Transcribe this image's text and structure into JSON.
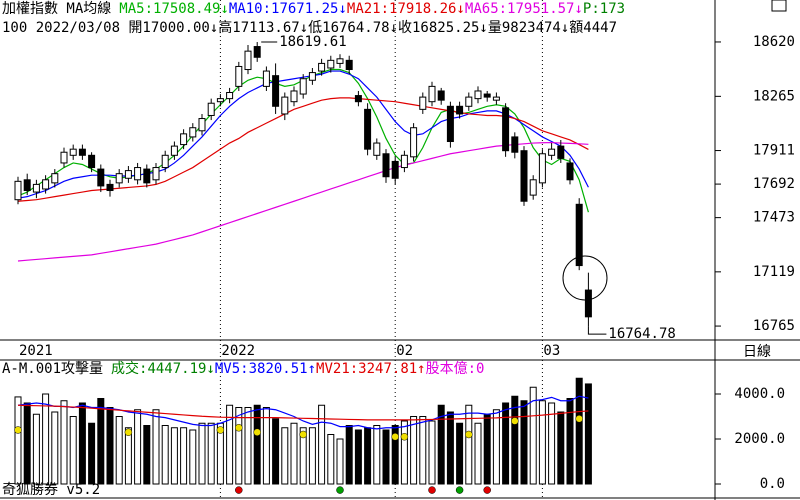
{
  "header": {
    "prefix": "加權指數 MA均線",
    "suffix": {
      "text": "P:173",
      "color": "#008000"
    },
    "line2": "100 2022/03/08 開17000.00↓高17113.67↓低16764.78↓收16825.25↓量9823474↓額4447"
  },
  "side_label": "日線",
  "footer": "奇狐勝券 v5.2",
  "chart_data": [
    {
      "type": "candlestick",
      "categories": [
        "2021",
        null,
        null,
        null,
        null,
        null,
        null,
        null,
        null,
        null,
        null,
        null,
        null,
        null,
        null,
        null,
        null,
        null,
        null,
        null,
        null,
        null,
        "2022",
        null,
        null,
        null,
        null,
        null,
        null,
        null,
        null,
        null,
        null,
        null,
        null,
        null,
        null,
        null,
        null,
        null,
        null,
        "02",
        null,
        null,
        null,
        null,
        null,
        null,
        null,
        null,
        null,
        null,
        null,
        null,
        null,
        null,
        null,
        "03",
        null,
        null,
        null,
        null,
        null
      ],
      "open": [
        17590,
        17720,
        17640,
        17660,
        17700,
        17830,
        17880,
        17920,
        17880,
        17790,
        17690,
        17700,
        17730,
        17720,
        17790,
        17720,
        17800,
        17880,
        17950,
        18000,
        18040,
        18140,
        18230,
        18250,
        18330,
        18440,
        18590,
        18330,
        18400,
        18150,
        18230,
        18280,
        18370,
        18430,
        18450,
        18480,
        18500,
        18270,
        18180,
        17880,
        17890,
        17840,
        17800,
        17870,
        18180,
        18230,
        18300,
        18200,
        18200,
        18200,
        18250,
        18280,
        18240,
        18190,
        18000,
        17910,
        17620,
        17700,
        17880,
        17940,
        17830,
        17560,
        17000
      ],
      "close": [
        17710,
        17650,
        17690,
        17720,
        17760,
        17900,
        17920,
        17880,
        17800,
        17680,
        17650,
        17760,
        17780,
        17800,
        17700,
        17800,
        17880,
        17940,
        18020,
        18060,
        18120,
        18220,
        18250,
        18290,
        18460,
        18560,
        18520,
        18430,
        18200,
        18260,
        18300,
        18380,
        18420,
        18480,
        18500,
        18510,
        18440,
        18230,
        17920,
        17960,
        17740,
        17730,
        17880,
        18060,
        18260,
        18330,
        18240,
        17970,
        18150,
        18260,
        18300,
        18260,
        18260,
        17910,
        17900,
        17580,
        17720,
        17890,
        17920,
        17860,
        17720,
        17160,
        16825.25
      ],
      "high": [
        17740,
        17760,
        17720,
        17750,
        17790,
        17930,
        17950,
        17950,
        17900,
        17820,
        17720,
        17790,
        17810,
        17830,
        17820,
        17830,
        17910,
        17970,
        18050,
        18090,
        18150,
        18250,
        18280,
        18320,
        18490,
        18600,
        18619.61,
        18460,
        18480,
        18290,
        18330,
        18410,
        18450,
        18510,
        18530,
        18540,
        18530,
        18300,
        18220,
        17990,
        17920,
        17870,
        17910,
        18090,
        18290,
        18360,
        18320,
        18230,
        18230,
        18290,
        18330,
        18300,
        18290,
        18220,
        18030,
        17940,
        17750,
        17920,
        17960,
        17980,
        17860,
        17600,
        17113.67
      ],
      "low": [
        17560,
        17620,
        17600,
        17630,
        17670,
        17800,
        17850,
        17850,
        17770,
        17640,
        17610,
        17670,
        17700,
        17690,
        17670,
        17690,
        17770,
        17850,
        17920,
        17970,
        18010,
        18110,
        18200,
        18220,
        18300,
        18410,
        18490,
        18300,
        18150,
        18110,
        18200,
        18250,
        18340,
        18400,
        18420,
        18450,
        18410,
        18200,
        17880,
        17850,
        17700,
        17690,
        17770,
        17840,
        18150,
        18200,
        18210,
        17930,
        18120,
        18170,
        18220,
        18230,
        18210,
        17870,
        17860,
        17550,
        17590,
        17670,
        17850,
        17830,
        17690,
        17130,
        16764.78
      ],
      "series": [
        {
          "name": "MA5:17508.49↓",
          "color": "#00b000",
          "values": [
            17615,
            17640,
            17680,
            17720,
            17760,
            17800,
            17830,
            17820,
            17790,
            17760,
            17740,
            17730,
            17740,
            17750,
            17760,
            17790,
            17830,
            17880,
            17940,
            18010,
            18080,
            18150,
            18210,
            18270,
            18330,
            18370,
            18390,
            18380,
            18350,
            18330,
            18340,
            18370,
            18400,
            18420,
            18440,
            18440,
            18420,
            18350,
            18250,
            18130,
            17990,
            17880,
            17820,
            17830,
            17930,
            18060,
            18160,
            18180,
            18150,
            18160,
            18180,
            18200,
            18210,
            18200,
            18150,
            18060,
            17930,
            17850,
            17820,
            17860,
            17840,
            17720,
            17508.49
          ]
        },
        {
          "name": "MA10:17671.25↓",
          "color": "#0000ff",
          "values": [
            17600,
            17610,
            17630,
            17650,
            17680,
            17710,
            17730,
            17740,
            17750,
            17750,
            17750,
            17745,
            17745,
            17750,
            17760,
            17770,
            17790,
            17830,
            17880,
            17940,
            18000,
            18070,
            18140,
            18200,
            18250,
            18290,
            18320,
            18350,
            18360,
            18370,
            18380,
            18390,
            18400,
            18410,
            18430,
            18430,
            18410,
            18380,
            18320,
            18260,
            18180,
            18100,
            18040,
            18010,
            18020,
            18060,
            18100,
            18120,
            18130,
            18150,
            18160,
            18170,
            18170,
            18150,
            18120,
            18080,
            18040,
            18000,
            17970,
            17940,
            17880,
            17790,
            17671.25
          ]
        },
        {
          "name": "MA21:17918.26↓",
          "color": "#e00000",
          "values": [
            17580,
            17585,
            17590,
            17600,
            17610,
            17620,
            17630,
            17640,
            17650,
            17655,
            17660,
            17665,
            17670,
            17675,
            17680,
            17690,
            17710,
            17740,
            17770,
            17800,
            17840,
            17880,
            17920,
            17960,
            17990,
            18030,
            18060,
            18090,
            18120,
            18150,
            18180,
            18200,
            18220,
            18240,
            18250,
            18255,
            18255,
            18250,
            18245,
            18240,
            18235,
            18230,
            18220,
            18210,
            18200,
            18190,
            18180,
            18170,
            18160,
            18150,
            18145,
            18140,
            18140,
            18135,
            18120,
            18100,
            18070,
            18040,
            18020,
            18000,
            17980,
            17950,
            17918.26
          ]
        },
        {
          "name": "MA65:17951.57↓",
          "color": "#e000e0",
          "values": [
            17190,
            17195,
            17200,
            17205,
            17210,
            17215,
            17220,
            17225,
            17230,
            17240,
            17250,
            17260,
            17270,
            17280,
            17290,
            17300,
            17315,
            17330,
            17345,
            17360,
            17380,
            17400,
            17420,
            17440,
            17460,
            17480,
            17500,
            17520,
            17540,
            17560,
            17580,
            17600,
            17620,
            17640,
            17660,
            17680,
            17700,
            17720,
            17740,
            17760,
            17780,
            17800,
            17815,
            17830,
            17845,
            17860,
            17875,
            17890,
            17900,
            17910,
            17920,
            17930,
            17940,
            17945,
            17950,
            17955,
            17960,
            17962,
            17963,
            17960,
            17958,
            17955,
            17951.57
          ]
        }
      ],
      "ylim": [
        16674,
        18894
      ],
      "yticks": [
        18620,
        18265,
        17911,
        17692,
        17473,
        17119,
        16765
      ]
    },
    {
      "type": "volume",
      "title": "A-M.001攻擊量",
      "volume_label": {
        "text": "成交:4447.19↓",
        "color": "#008000"
      },
      "share_label": {
        "text": "股本億:0",
        "color": "#e000e0"
      },
      "values": [
        3870,
        3600,
        3100,
        4000,
        3200,
        3700,
        3000,
        3600,
        2700,
        3800,
        3400,
        3000,
        2500,
        3300,
        2600,
        3300,
        2600,
        2500,
        2500,
        2400,
        2700,
        2700,
        2700,
        3500,
        3400,
        3400,
        3500,
        3400,
        2900,
        2500,
        2700,
        2500,
        2500,
        3500,
        2200,
        2000,
        2600,
        2400,
        2500,
        2600,
        2400,
        2600,
        2800,
        3000,
        3000,
        2800,
        3500,
        3200,
        2700,
        3500,
        2700,
        3100,
        3300,
        3600,
        3900,
        3700,
        4300,
        3700,
        3600,
        3200,
        3800,
        4700,
        4447.19
      ],
      "series": [
        {
          "name": "MV5:3820.51↑",
          "color": "#0000ff",
          "values": [
            3500,
            3550,
            3600,
            3550,
            3450,
            3450,
            3400,
            3500,
            3400,
            3400,
            3350,
            3300,
            3200,
            3150,
            3100,
            3000,
            2950,
            2850,
            2750,
            2650,
            2600,
            2600,
            2700,
            2850,
            3050,
            3200,
            3300,
            3350,
            3300,
            3150,
            3000,
            2800,
            2650,
            2750,
            2700,
            2550,
            2550,
            2600,
            2500,
            2450,
            2500,
            2500,
            2550,
            2650,
            2750,
            2850,
            3000,
            3100,
            3100,
            3150,
            3150,
            3100,
            3150,
            3300,
            3400,
            3450,
            3700,
            3750,
            3850,
            3700,
            3700,
            3900,
            3820.51
          ]
        },
        {
          "name": "MV21:3247.81↑",
          "color": "#e00000",
          "values": [
            3500,
            3490,
            3480,
            3470,
            3460,
            3440,
            3420,
            3400,
            3370,
            3340,
            3310,
            3280,
            3250,
            3220,
            3190,
            3160,
            3130,
            3100,
            3070,
            3040,
            3010,
            2990,
            2970,
            2960,
            2950,
            2950,
            2950,
            2950,
            2950,
            2940,
            2930,
            2920,
            2910,
            2900,
            2890,
            2880,
            2870,
            2860,
            2850,
            2850,
            2850,
            2850,
            2850,
            2850,
            2860,
            2870,
            2880,
            2890,
            2900,
            2910,
            2920,
            2930,
            2940,
            2960,
            2980,
            3000,
            3030,
            3060,
            3100,
            3140,
            3180,
            3220,
            3247.81
          ]
        }
      ],
      "markers": [
        {
          "color": "#f0e000",
          "values": [
            2400,
            null,
            null,
            null,
            null,
            null,
            null,
            null,
            null,
            null,
            null,
            null,
            2300,
            null,
            null,
            null,
            null,
            null,
            null,
            null,
            null,
            null,
            2400,
            null,
            2500,
            null,
            2300,
            null,
            null,
            null,
            null,
            2200,
            null,
            null,
            null,
            null,
            null,
            null,
            null,
            null,
            null,
            2100,
            2100,
            null,
            null,
            null,
            null,
            null,
            null,
            2200,
            null,
            null,
            null,
            null,
            2800,
            null,
            null,
            null,
            null,
            null,
            null,
            2900,
            null
          ]
        },
        {
          "color": "#e00000",
          "values": [
            null,
            null,
            null,
            null,
            null,
            null,
            null,
            null,
            null,
            null,
            null,
            null,
            null,
            null,
            null,
            null,
            null,
            null,
            null,
            null,
            null,
            null,
            null,
            null,
            -270,
            null,
            null,
            null,
            null,
            null,
            null,
            null,
            null,
            null,
            null,
            null,
            null,
            null,
            null,
            null,
            null,
            null,
            null,
            null,
            null,
            -270,
            null,
            null,
            null,
            null,
            null,
            -270,
            null,
            null,
            null,
            null,
            null,
            null,
            null,
            null,
            null,
            null,
            null
          ]
        },
        {
          "color": "#00a000",
          "values": [
            null,
            null,
            null,
            null,
            null,
            null,
            null,
            null,
            null,
            null,
            null,
            null,
            null,
            null,
            null,
            null,
            null,
            null,
            null,
            null,
            null,
            null,
            null,
            null,
            null,
            null,
            null,
            null,
            null,
            null,
            null,
            null,
            null,
            null,
            null,
            -270,
            null,
            null,
            null,
            null,
            null,
            null,
            null,
            null,
            null,
            null,
            null,
            null,
            -270,
            null,
            null,
            null,
            null,
            null,
            null,
            null,
            null,
            null,
            null,
            null,
            null,
            null,
            null
          ]
        }
      ],
      "ylim": [
        -489,
        5422
      ],
      "yticks": [
        {
          "value": 4000,
          "label": "4000.0"
        },
        {
          "value": 2000,
          "label": "2000.0"
        },
        {
          "value": 0,
          "label": "0.0"
        }
      ]
    }
  ]
}
